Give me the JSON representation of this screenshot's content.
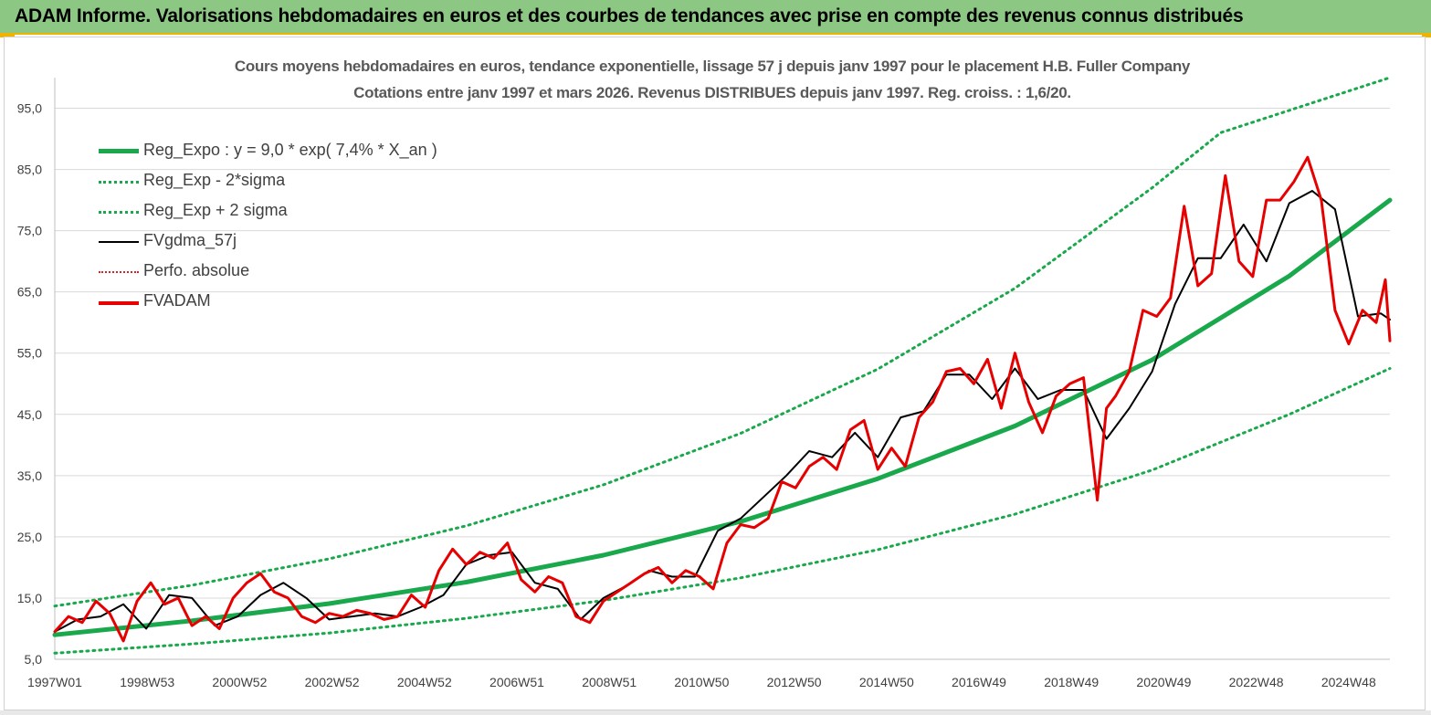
{
  "banner": {
    "title": "ADAM Informe. Valorisations hebdomadaires en euros et des courbes de tendances avec prise en compte des revenus connus distribués"
  },
  "chart_data": {
    "type": "line",
    "title": "Cours moyens hebdomadaires en euros, tendance exponentielle, lissage 57 j depuis janv 1997 pour le placement H.B. Fuller Company",
    "subtitle": "Cotations entre janv 1997 et mars 2026. Revenus DISTRIBUES depuis janv 1997. Reg. croiss. : 1,6/20.",
    "xlabel": "",
    "ylabel": "",
    "x_ticks": [
      "1997W01",
      "1998W53",
      "2000W52",
      "2002W52",
      "2004W52",
      "2006W51",
      "2008W51",
      "2010W50",
      "2012W50",
      "2014W50",
      "2016W49",
      "2018W49",
      "2020W49",
      "2022W48",
      "2024W48"
    ],
    "y_ticks": [
      "5,0",
      "15,0",
      "25,0",
      "35,0",
      "45,0",
      "55,0",
      "65,0",
      "75,0",
      "85,0",
      "95,0"
    ],
    "ylim": [
      5,
      100
    ],
    "xlim": [
      1997.0,
      2026.2
    ],
    "grid": "horizontal",
    "legend_position": "top-left",
    "series": [
      {
        "name": "Reg_Expo : y = 9,0 * exp( 7,4% *  X_an )",
        "style": "solid-thick",
        "color": "#19a84b",
        "x": [
          1997,
          2000,
          2003,
          2006,
          2009,
          2012,
          2015,
          2018,
          2021,
          2024,
          2026.2
        ],
        "y": [
          9.0,
          11.3,
          14.1,
          17.6,
          22.0,
          27.5,
          34.5,
          43.1,
          53.9,
          67.6,
          80.0
        ]
      },
      {
        "name": "Reg_Exp - 2*sigma",
        "style": "dotted",
        "color": "#19a84b",
        "x": [
          1997,
          2000,
          2003,
          2006,
          2009,
          2012,
          2015,
          2018,
          2021,
          2024,
          2026.2
        ],
        "y": [
          6.0,
          7.5,
          9.3,
          11.7,
          14.6,
          18.3,
          22.9,
          28.7,
          35.9,
          45.0,
          52.5
        ]
      },
      {
        "name": "Reg_Exp + 2 sigma",
        "style": "dotted",
        "color": "#19a84b",
        "x": [
          1997,
          2000,
          2003,
          2006,
          2009,
          2012,
          2015,
          2018,
          2021,
          2022.5,
          2026.2
        ],
        "y": [
          13.7,
          17.1,
          21.4,
          26.8,
          33.5,
          41.9,
          52.4,
          65.6,
          82.0,
          91.0,
          100.0
        ]
      },
      {
        "name": "FVgdma_57j",
        "style": "solid",
        "color": "#000000",
        "x": [
          1997.0,
          1997.5,
          1998.0,
          1998.5,
          1999.0,
          1999.5,
          2000.0,
          2000.5,
          2001.0,
          2001.5,
          2002.0,
          2002.5,
          2003.0,
          2003.5,
          2004.0,
          2004.5,
          2005.0,
          2005.5,
          2006.0,
          2006.5,
          2007.0,
          2007.5,
          2008.0,
          2008.5,
          2009.0,
          2009.5,
          2010.0,
          2010.5,
          2011.0,
          2011.5,
          2012.0,
          2012.5,
          2013.0,
          2013.5,
          2014.0,
          2014.5,
          2015.0,
          2015.5,
          2016.0,
          2016.5,
          2017.0,
          2017.5,
          2018.0,
          2018.5,
          2019.0,
          2019.5,
          2020.0,
          2020.5,
          2021.0,
          2021.5,
          2022.0,
          2022.5,
          2023.0,
          2023.5,
          2024.0,
          2024.5,
          2025.0,
          2025.5,
          2026.0,
          2026.2
        ],
        "y": [
          9.5,
          11.5,
          12.0,
          14.0,
          10.0,
          15.5,
          15.0,
          10.5,
          12.0,
          15.5,
          17.5,
          15.0,
          11.5,
          12.0,
          12.5,
          12.0,
          13.5,
          15.5,
          20.5,
          22.0,
          22.5,
          17.5,
          16.5,
          11.5,
          15.0,
          17.0,
          19.5,
          18.5,
          18.5,
          26.0,
          28.0,
          31.5,
          35.0,
          39.0,
          38.0,
          42.0,
          38.0,
          44.5,
          45.5,
          51.5,
          51.5,
          47.5,
          52.5,
          47.5,
          49.0,
          49.0,
          41.0,
          46.0,
          52.0,
          63.0,
          70.5,
          70.5,
          76.0,
          70.0,
          79.5,
          81.5,
          78.5,
          61.0,
          61.5,
          60.5
        ]
      },
      {
        "name": "Perfo. absolue",
        "style": "dotted",
        "color": "#e02020",
        "x": [],
        "y": []
      },
      {
        "name": "FVADAM",
        "style": "solid-thick",
        "color": "#e60000",
        "x": [
          1997.0,
          1997.3,
          1997.6,
          1997.9,
          1998.2,
          1998.5,
          1998.8,
          1999.1,
          1999.4,
          1999.7,
          2000.0,
          2000.3,
          2000.6,
          2000.9,
          2001.2,
          2001.5,
          2001.8,
          2002.1,
          2002.4,
          2002.7,
          2003.0,
          2003.3,
          2003.6,
          2003.9,
          2004.2,
          2004.5,
          2004.8,
          2005.1,
          2005.4,
          2005.7,
          2006.0,
          2006.3,
          2006.6,
          2006.9,
          2007.2,
          2007.5,
          2007.8,
          2008.1,
          2008.4,
          2008.7,
          2009.0,
          2009.3,
          2009.6,
          2009.9,
          2010.2,
          2010.5,
          2010.8,
          2011.1,
          2011.4,
          2011.7,
          2012.0,
          2012.3,
          2012.6,
          2012.9,
          2013.2,
          2013.5,
          2013.8,
          2014.1,
          2014.4,
          2014.7,
          2015.0,
          2015.3,
          2015.6,
          2015.9,
          2016.2,
          2016.5,
          2016.8,
          2017.1,
          2017.4,
          2017.7,
          2018.0,
          2018.3,
          2018.6,
          2018.9,
          2019.2,
          2019.5,
          2019.8,
          2020.0,
          2020.2,
          2020.5,
          2020.8,
          2021.1,
          2021.4,
          2021.7,
          2022.0,
          2022.3,
          2022.6,
          2022.9,
          2023.2,
          2023.5,
          2023.8,
          2024.1,
          2024.4,
          2024.7,
          2025.0,
          2025.3,
          2025.6,
          2025.9,
          2026.1,
          2026.2
        ],
        "y": [
          9.5,
          12.0,
          11.0,
          14.5,
          12.5,
          8.0,
          14.5,
          17.5,
          14.0,
          15.0,
          10.5,
          12.0,
          10.0,
          15.0,
          17.5,
          19.0,
          16.0,
          15.0,
          12.0,
          11.0,
          12.5,
          12.0,
          13.0,
          12.5,
          11.5,
          12.0,
          15.5,
          13.5,
          19.5,
          23.0,
          20.5,
          22.5,
          21.5,
          24.0,
          18.0,
          16.0,
          18.5,
          17.5,
          12.0,
          11.0,
          14.5,
          16.0,
          17.5,
          19.0,
          20.0,
          17.5,
          19.5,
          18.5,
          16.5,
          24.0,
          27.0,
          26.5,
          28.0,
          34.0,
          33.0,
          36.5,
          38.0,
          36.0,
          42.5,
          44.0,
          36.0,
          39.5,
          36.5,
          44.5,
          47.0,
          52.0,
          52.5,
          50.0,
          54.0,
          46.0,
          55.0,
          47.0,
          42.0,
          48.0,
          50.0,
          51.0,
          31.0,
          46.0,
          48.0,
          52.0,
          62.0,
          61.0,
          64.0,
          79.0,
          66.0,
          68.0,
          84.0,
          70.0,
          67.5,
          80.0,
          80.0,
          83.0,
          87.0,
          80.0,
          62.0,
          56.5,
          62.0,
          60.0,
          67.0,
          57.0
        ]
      }
    ]
  }
}
